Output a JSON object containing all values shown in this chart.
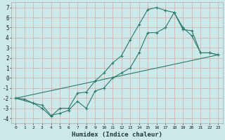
{
  "xlabel": "Humidex (Indice chaleur)",
  "background_color": "#cce8e8",
  "grid_color": "#d8a8a8",
  "line_color": "#2a7a6a",
  "xlim": [
    -0.5,
    23.5
  ],
  "ylim": [
    -4.5,
    7.5
  ],
  "xticks": [
    0,
    1,
    2,
    3,
    4,
    5,
    6,
    7,
    8,
    9,
    10,
    11,
    12,
    13,
    14,
    15,
    16,
    17,
    18,
    19,
    20,
    21,
    22,
    23
  ],
  "yticks": [
    -4,
    -3,
    -2,
    -1,
    0,
    1,
    2,
    3,
    4,
    5,
    6,
    7
  ],
  "line1_x": [
    0,
    1,
    2,
    3,
    4,
    5,
    6,
    7,
    8,
    9,
    10,
    11,
    12,
    13,
    14,
    15,
    16,
    17,
    18,
    19,
    20,
    21,
    22,
    23
  ],
  "line1_y": [
    -2.0,
    -2.1,
    -2.5,
    -3.0,
    -3.8,
    -3.0,
    -3.0,
    -1.5,
    -1.4,
    -0.3,
    0.5,
    1.5,
    2.2,
    3.8,
    5.3,
    6.8,
    7.0,
    6.7,
    6.5,
    5.0,
    4.2,
    2.5,
    2.5,
    2.3
  ],
  "line2_x": [
    0,
    2,
    3,
    4,
    5,
    6,
    7,
    8,
    9,
    10,
    11,
    12,
    13,
    14,
    15,
    16,
    17,
    18,
    19,
    20,
    21,
    22,
    23
  ],
  "line2_y": [
    -2.0,
    -2.5,
    -2.7,
    -3.7,
    -3.5,
    -3.2,
    -2.3,
    -3.0,
    -1.3,
    -1.0,
    0.0,
    0.5,
    1.0,
    2.5,
    4.5,
    4.5,
    5.0,
    6.5,
    4.8,
    4.7,
    2.5,
    2.5,
    2.3
  ],
  "line3_x": [
    0,
    23
  ],
  "line3_y": [
    -2.0,
    2.3
  ]
}
